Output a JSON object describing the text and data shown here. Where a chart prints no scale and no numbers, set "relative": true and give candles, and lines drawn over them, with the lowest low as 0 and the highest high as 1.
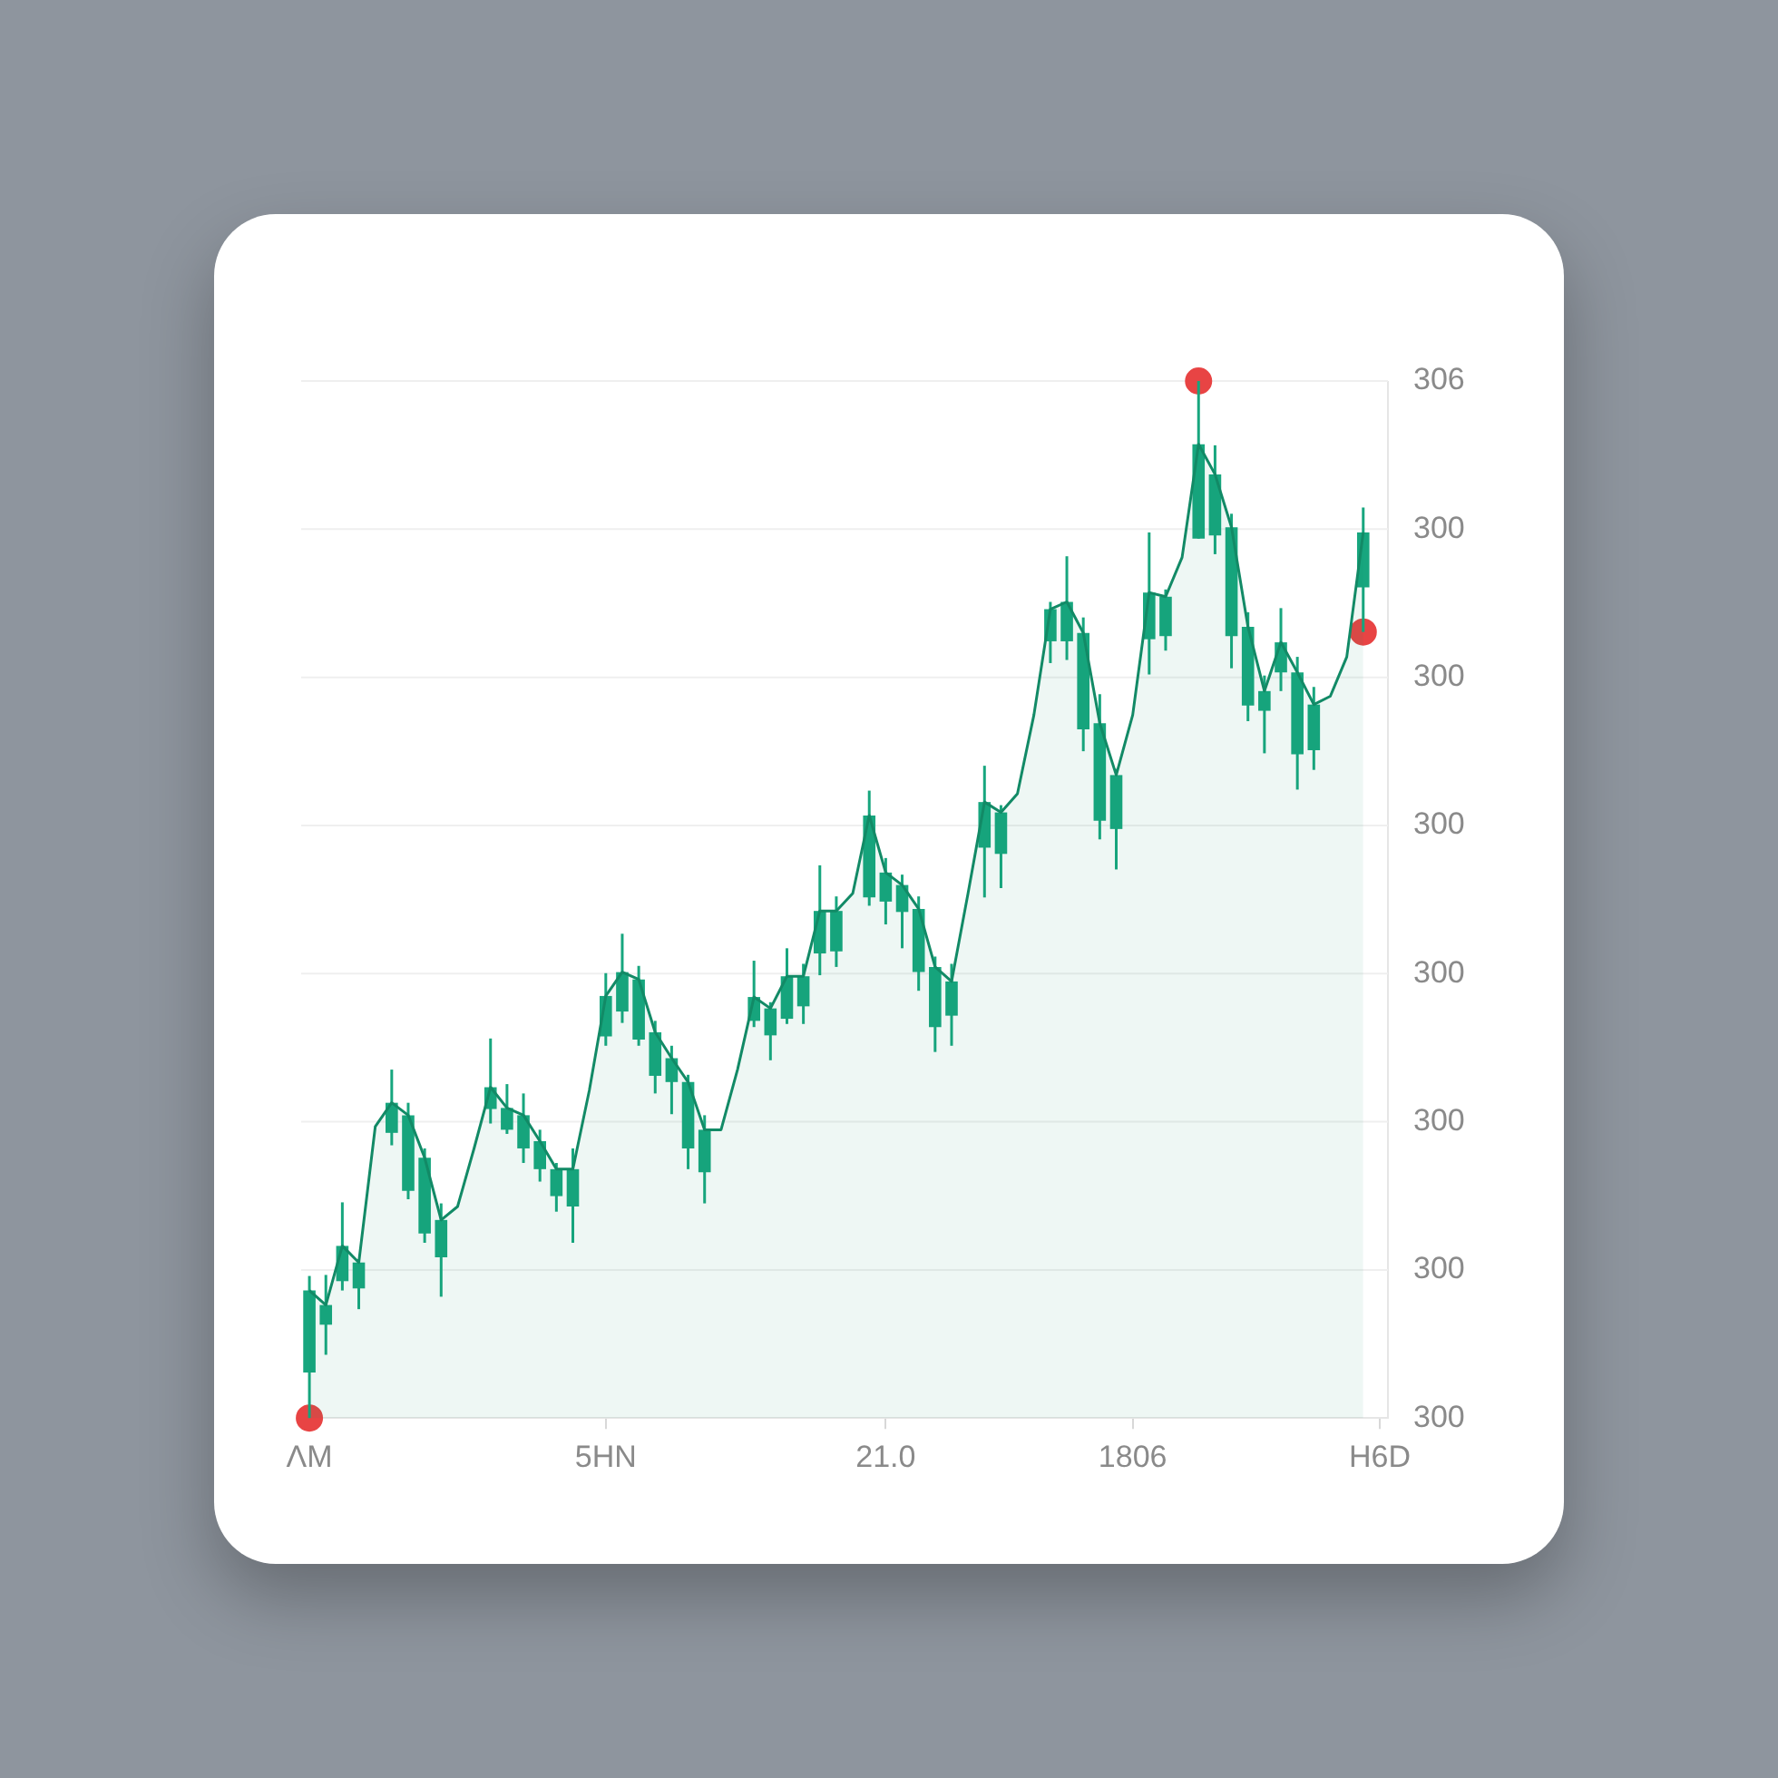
{
  "chart_data": {
    "type": "candlestick",
    "categories": [
      "ΛM",
      null,
      null,
      null,
      null,
      null,
      null,
      null,
      null,
      null,
      null,
      null,
      null,
      null,
      null,
      null,
      null,
      null,
      "5HN",
      null,
      null,
      null,
      null,
      null,
      null,
      null,
      null,
      null,
      null,
      null,
      null,
      null,
      null,
      null,
      null,
      "21.0",
      null,
      null,
      null,
      null,
      null,
      null,
      null,
      null,
      null,
      null,
      null,
      null,
      null,
      null,
      "1806",
      null,
      null,
      null,
      null,
      null,
      null,
      null,
      null,
      null,
      null,
      null,
      null,
      null,
      null,
      "H6D"
    ],
    "relative": true,
    "color": "#17a67e",
    "ohlc": [
      [
        0.044,
        0.137,
        0,
        0.123
      ],
      [
        0.09,
        0.138,
        0.061,
        0.109
      ],
      [
        0.132,
        0.208,
        0.123,
        0.166
      ],
      [
        0.125,
        0.153,
        0.105,
        0.15
      ],
      null,
      [
        0.275,
        0.336,
        0.263,
        0.304
      ],
      [
        0.219,
        0.304,
        0.211,
        0.292
      ],
      [
        0.178,
        0.26,
        0.169,
        0.251
      ],
      [
        0.155,
        0.207,
        0.117,
        0.191
      ],
      null,
      null,
      [
        0.298,
        0.366,
        0.284,
        0.319
      ],
      [
        0.278,
        0.322,
        0.274,
        0.299
      ],
      [
        0.26,
        0.313,
        0.246,
        0.292
      ],
      [
        0.24,
        0.278,
        0.228,
        0.267
      ],
      [
        0.214,
        0.246,
        0.199,
        0.24
      ],
      [
        0.204,
        0.26,
        0.169,
        0.24
      ],
      null,
      [
        0.368,
        0.429,
        0.359,
        0.407
      ],
      [
        0.392,
        0.467,
        0.381,
        0.43
      ],
      [
        0.365,
        0.436,
        0.359,
        0.423
      ],
      [
        0.33,
        0.383,
        0.313,
        0.372
      ],
      [
        0.324,
        0.359,
        0.293,
        0.347
      ],
      [
        0.26,
        0.331,
        0.24,
        0.324
      ],
      [
        0.237,
        0.292,
        0.207,
        0.278
      ],
      null,
      null,
      [
        0.383,
        0.441,
        0.377,
        0.406
      ],
      [
        0.369,
        0.401,
        0.345,
        0.395
      ],
      [
        0.385,
        0.453,
        0.38,
        0.426
      ],
      [
        0.397,
        0.438,
        0.38,
        0.426
      ],
      [
        0.448,
        0.533,
        0.427,
        0.489
      ],
      [
        0.45,
        0.503,
        0.435,
        0.489
      ],
      null,
      [
        0.502,
        0.605,
        0.494,
        0.581
      ],
      [
        0.498,
        0.54,
        0.476,
        0.526
      ],
      [
        0.488,
        0.524,
        0.453,
        0.514
      ],
      [
        0.43,
        0.503,
        0.412,
        0.491
      ],
      [
        0.377,
        0.445,
        0.353,
        0.435
      ],
      [
        0.388,
        0.438,
        0.359,
        0.421
      ],
      null,
      [
        0.55,
        0.629,
        0.502,
        0.594
      ],
      [
        0.544,
        0.591,
        0.511,
        0.584
      ],
      null,
      null,
      [
        0.749,
        0.787,
        0.728,
        0.78
      ],
      [
        0.749,
        0.831,
        0.731,
        0.787
      ],
      [
        0.664,
        0.772,
        0.643,
        0.757
      ],
      [
        0.576,
        0.698,
        0.558,
        0.67
      ],
      [
        0.568,
        0.626,
        0.529,
        0.62
      ],
      null,
      [
        0.751,
        0.854,
        0.717,
        0.796
      ],
      [
        0.754,
        0.799,
        0.74,
        0.792
      ],
      null,
      [
        0.848,
        1,
        0.848,
        0.939
      ],
      [
        0.851,
        0.938,
        0.833,
        0.91
      ],
      [
        0.754,
        0.872,
        0.723,
        0.859
      ],
      [
        0.687,
        0.777,
        0.672,
        0.763
      ],
      [
        0.682,
        0.716,
        0.641,
        0.701
      ],
      [
        0.719,
        0.781,
        0.701,
        0.748
      ],
      [
        0.64,
        0.734,
        0.606,
        0.719
      ],
      [
        0.644,
        0.705,
        0.625,
        0.688
      ],
      null,
      null,
      [
        0.801,
        0.878,
        0.758,
        0.854
      ],
      null
    ],
    "series": [
      {
        "type": "area",
        "color": "#128a66",
        "values": [
          0.123,
          0.109,
          0.166,
          0.15,
          0.281,
          0.304,
          0.292,
          0.251,
          0.191,
          0.204,
          0.26,
          0.319,
          0.299,
          0.292,
          0.267,
          0.24,
          0.24,
          0.316,
          0.407,
          0.43,
          0.423,
          0.372,
          0.347,
          0.324,
          0.278,
          0.278,
          0.336,
          0.406,
          0.395,
          0.426,
          0.426,
          0.489,
          0.489,
          0.506,
          0.581,
          0.526,
          0.514,
          0.491,
          0.435,
          0.421,
          0.506,
          0.594,
          0.584,
          0.602,
          0.678,
          0.78,
          0.787,
          0.757,
          0.67,
          0.62,
          0.678,
          0.796,
          0.792,
          0.83,
          0.939,
          0.91,
          0.859,
          0.763,
          0.701,
          0.748,
          0.719,
          0.688,
          0.696,
          0.734,
          0.854,
          null
        ]
      },
      {
        "type": "scatter",
        "color": "#e84444",
        "marker": "circle",
        "values": [
          0,
          null,
          null,
          null,
          null,
          null,
          null,
          null,
          null,
          null,
          null,
          null,
          null,
          null,
          null,
          null,
          null,
          null,
          null,
          null,
          null,
          null,
          null,
          null,
          null,
          null,
          null,
          null,
          null,
          null,
          null,
          null,
          null,
          null,
          null,
          null,
          null,
          null,
          null,
          null,
          null,
          null,
          null,
          null,
          null,
          null,
          null,
          null,
          null,
          null,
          null,
          null,
          null,
          null,
          1,
          null,
          null,
          null,
          null,
          null,
          null,
          null,
          null,
          null,
          0.758,
          null
        ]
      }
    ],
    "annotations": [
      "306",
      "300",
      "300",
      "300",
      "300",
      "300",
      "300",
      "300"
    ],
    "grid": "y"
  }
}
